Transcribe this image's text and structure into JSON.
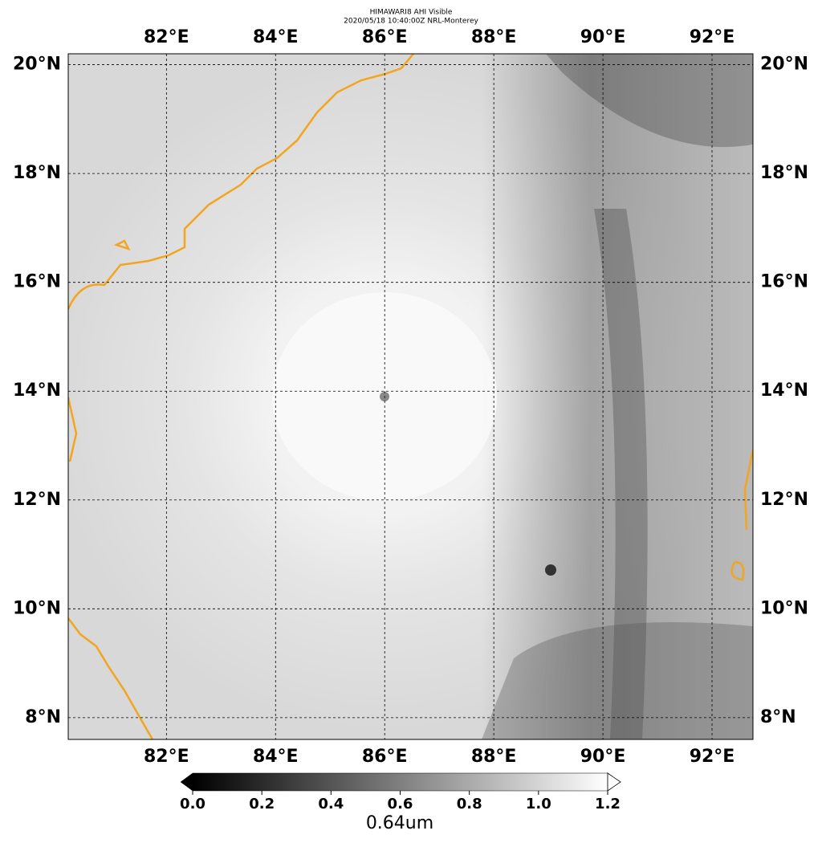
{
  "map": {
    "title": "HIMAWARI8 AHI Visible",
    "subtitle": "2020/05/18 10:40:00Z NRL-Monterey",
    "xlim": [
      80.2,
      92.75
    ],
    "ylim": [
      7.6,
      20.2
    ],
    "lon_ticks": [
      {
        "value": 82,
        "label": "82°E"
      },
      {
        "value": 84,
        "label": "84°E"
      },
      {
        "value": 86,
        "label": "86°E"
      },
      {
        "value": 88,
        "label": "88°E"
      },
      {
        "value": 90,
        "label": "90°E"
      },
      {
        "value": 92,
        "label": "92°E"
      }
    ],
    "lat_ticks": [
      {
        "value": 8,
        "label": "8°N"
      },
      {
        "value": 10,
        "label": "10°N"
      },
      {
        "value": 12,
        "label": "12°N"
      },
      {
        "value": 14,
        "label": "14°N"
      },
      {
        "value": 16,
        "label": "16°N"
      },
      {
        "value": 18,
        "label": "18°N"
      },
      {
        "value": 20,
        "label": "20°N"
      }
    ],
    "colorbar": {
      "label": "0.64um",
      "lim": [
        0,
        1.2
      ],
      "ticks": [
        {
          "value": 0,
          "label": "0.0"
        },
        {
          "value": 0.2,
          "label": "0.2"
        },
        {
          "value": 0.4,
          "label": "0.4"
        },
        {
          "value": 0.6,
          "label": "0.6"
        },
        {
          "value": 0.8,
          "label": "0.8"
        },
        {
          "value": 1,
          "label": "1.0"
        },
        {
          "value": 1.2,
          "label": "1.2"
        }
      ]
    }
  }
}
